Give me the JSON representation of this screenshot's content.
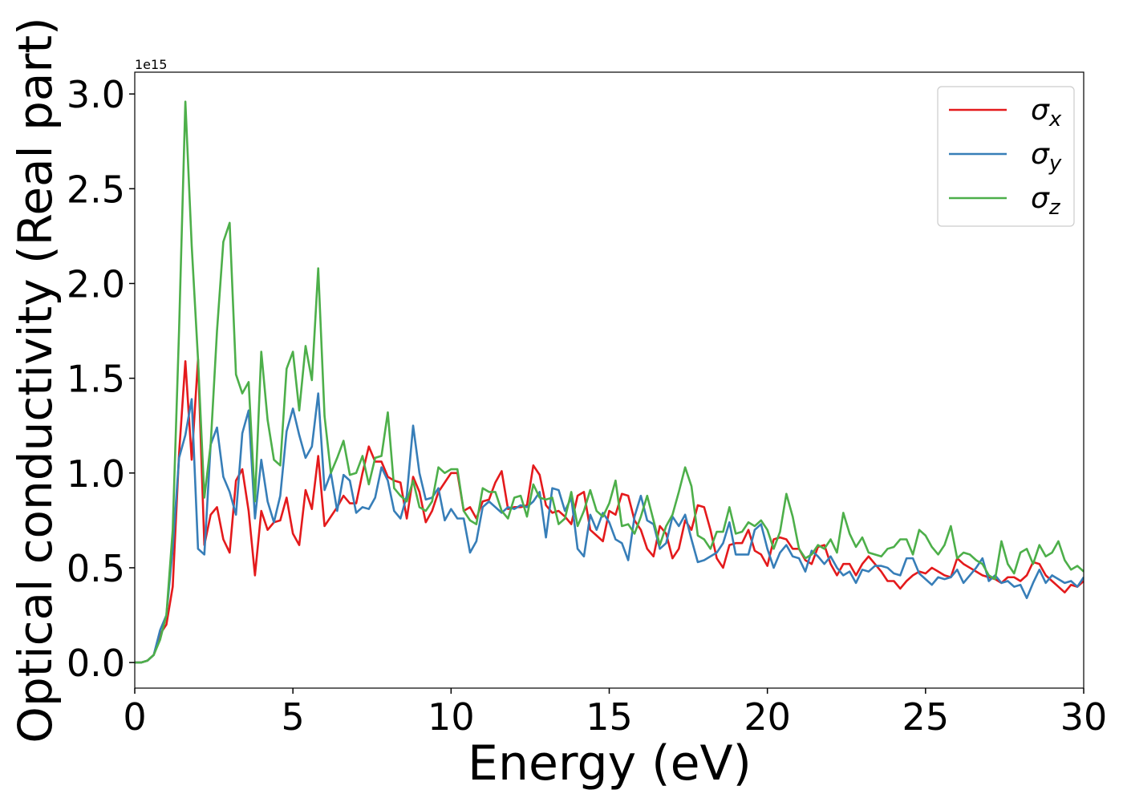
{
  "chart_data": {
    "type": "line",
    "xlabel": "Energy (eV)",
    "ylabel": "Optical conductivity (Real part)",
    "y_offset_label": "1e15",
    "x": [
      0,
      0.2,
      0.4,
      0.6,
      0.8,
      1,
      1.2,
      1.4,
      1.6,
      1.8,
      2,
      2.2,
      2.4,
      2.6,
      2.8,
      3,
      3.2,
      3.4,
      3.6,
      3.8,
      4,
      4.2,
      4.4,
      4.6,
      4.8,
      5,
      5.2,
      5.4,
      5.6,
      5.8,
      6,
      6.2,
      6.4,
      6.6,
      6.8,
      7,
      7.2,
      7.4,
      7.6,
      7.8,
      8,
      8.2,
      8.4,
      8.6,
      8.8,
      9,
      9.2,
      9.4,
      9.6,
      9.8,
      10,
      10.2,
      10.4,
      10.6,
      10.8,
      11,
      11.2,
      11.4,
      11.6,
      11.8,
      12,
      12.2,
      12.4,
      12.6,
      12.8,
      13,
      13.2,
      13.4,
      13.6,
      13.8,
      14,
      14.2,
      14.4,
      14.6,
      14.8,
      15,
      15.2,
      15.4,
      15.6,
      15.8,
      16,
      16.2,
      16.4,
      16.6,
      16.8,
      17,
      17.2,
      17.4,
      17.6,
      17.8,
      18,
      18.2,
      18.4,
      18.6,
      18.8,
      19,
      19.2,
      19.4,
      19.6,
      19.8,
      20,
      20.2,
      20.4,
      20.6,
      20.8,
      21,
      21.2,
      21.4,
      21.6,
      21.8,
      22,
      22.2,
      22.4,
      22.6,
      22.8,
      23,
      23.2,
      23.4,
      23.6,
      23.8,
      24,
      24.2,
      24.4,
      24.6,
      24.8,
      25,
      25.2,
      25.4,
      25.6,
      25.8,
      26,
      26.2,
      26.4,
      26.6,
      26.8,
      27,
      27.2,
      27.4,
      27.6,
      27.8,
      28,
      28.2,
      28.4,
      28.6,
      28.8,
      29,
      29.2,
      29.4,
      29.6,
      29.8,
      30
    ],
    "series": [
      {
        "name": "σx",
        "color": "#e41a1c",
        "values": [
          0,
          0,
          0.01,
          0.04,
          0.15,
          0.2,
          0.4,
          1.1,
          1.59,
          1.07,
          1.6,
          0.62,
          0.78,
          0.82,
          0.65,
          0.58,
          0.96,
          1.02,
          0.8,
          0.46,
          0.8,
          0.7,
          0.74,
          0.75,
          0.87,
          0.68,
          0.62,
          0.91,
          0.81,
          1.09,
          0.72,
          0.77,
          0.82,
          0.88,
          0.84,
          0.84,
          1.0,
          1.14,
          1.06,
          1.06,
          0.98,
          0.96,
          0.95,
          0.76,
          0.98,
          0.9,
          0.74,
          0.8,
          0.9,
          0.95,
          1.0,
          1.0,
          0.8,
          0.82,
          0.76,
          0.85,
          0.86,
          0.95,
          1.01,
          0.81,
          0.82,
          0.82,
          0.83,
          1.04,
          0.99,
          0.83,
          0.79,
          0.8,
          0.77,
          0.73,
          0.88,
          0.9,
          0.7,
          0.67,
          0.64,
          0.8,
          0.78,
          0.89,
          0.88,
          0.75,
          0.7,
          0.6,
          0.56,
          0.72,
          0.68,
          0.55,
          0.6,
          0.75,
          0.7,
          0.83,
          0.82,
          0.7,
          0.55,
          0.5,
          0.62,
          0.63,
          0.63,
          0.7,
          0.59,
          0.57,
          0.51,
          0.65,
          0.66,
          0.65,
          0.6,
          0.6,
          0.54,
          0.52,
          0.61,
          0.62,
          0.52,
          0.46,
          0.52,
          0.52,
          0.46,
          0.52,
          0.56,
          0.52,
          0.48,
          0.43,
          0.43,
          0.39,
          0.43,
          0.46,
          0.48,
          0.47,
          0.5,
          0.48,
          0.46,
          0.45,
          0.55,
          0.52,
          0.5,
          0.48,
          0.46,
          0.45,
          0.44,
          0.42,
          0.45,
          0.45,
          0.43,
          0.46,
          0.53,
          0.52,
          0.46,
          0.43,
          0.4,
          0.37,
          0.41,
          0.4,
          0.43
        ]
      },
      {
        "name": "σy",
        "color": "#377eb8",
        "values": [
          0,
          0,
          0.01,
          0.04,
          0.17,
          0.25,
          0.6,
          1.08,
          1.2,
          1.39,
          0.6,
          0.57,
          1.15,
          1.24,
          0.98,
          0.9,
          0.78,
          1.21,
          1.33,
          0.76,
          1.07,
          0.85,
          0.74,
          0.88,
          1.22,
          1.34,
          1.2,
          1.08,
          1.14,
          1.42,
          0.91,
          1.0,
          0.8,
          0.99,
          0.96,
          0.79,
          0.82,
          0.81,
          0.87,
          1.03,
          0.96,
          0.8,
          0.76,
          0.88,
          1.25,
          1.0,
          0.86,
          0.87,
          0.92,
          0.75,
          0.81,
          0.76,
          0.76,
          0.58,
          0.64,
          0.82,
          0.85,
          0.82,
          0.79,
          0.82,
          0.81,
          0.83,
          0.82,
          0.85,
          0.9,
          0.66,
          0.92,
          0.91,
          0.8,
          0.87,
          0.6,
          0.56,
          0.78,
          0.7,
          0.79,
          0.74,
          0.65,
          0.63,
          0.54,
          0.77,
          0.88,
          0.75,
          0.73,
          0.6,
          0.63,
          0.77,
          0.72,
          0.78,
          0.65,
          0.53,
          0.54,
          0.56,
          0.58,
          0.63,
          0.74,
          0.57,
          0.57,
          0.57,
          0.7,
          0.73,
          0.6,
          0.5,
          0.58,
          0.62,
          0.56,
          0.55,
          0.48,
          0.59,
          0.56,
          0.52,
          0.56,
          0.5,
          0.46,
          0.48,
          0.42,
          0.49,
          0.48,
          0.51,
          0.51,
          0.5,
          0.47,
          0.46,
          0.55,
          0.55,
          0.47,
          0.44,
          0.41,
          0.45,
          0.44,
          0.45,
          0.49,
          0.42,
          0.46,
          0.5,
          0.55,
          0.43,
          0.46,
          0.42,
          0.43,
          0.4,
          0.41,
          0.34,
          0.42,
          0.49,
          0.42,
          0.46,
          0.44,
          0.42,
          0.43,
          0.4,
          0.45
        ]
      },
      {
        "name": "σz",
        "color": "#4daf4a",
        "values": [
          0,
          0,
          0.01,
          0.04,
          0.12,
          0.25,
          0.7,
          1.75,
          2.96,
          2.2,
          1.6,
          0.87,
          1.15,
          1.75,
          2.22,
          2.32,
          1.52,
          1.42,
          1.48,
          0.85,
          1.64,
          1.28,
          1.07,
          1.04,
          1.55,
          1.64,
          1.33,
          1.67,
          1.49,
          2.08,
          1.3,
          1.0,
          1.08,
          1.17,
          0.99,
          1.0,
          1.09,
          0.94,
          1.08,
          1.09,
          1.32,
          0.92,
          0.88,
          0.85,
          0.96,
          0.82,
          0.8,
          0.85,
          1.03,
          1.0,
          1.02,
          1.02,
          0.8,
          0.75,
          0.73,
          0.92,
          0.9,
          0.9,
          0.8,
          0.76,
          0.87,
          0.88,
          0.77,
          0.94,
          0.87,
          0.86,
          0.87,
          0.73,
          0.76,
          0.9,
          0.72,
          0.8,
          0.91,
          0.8,
          0.77,
          0.84,
          0.96,
          0.72,
          0.73,
          0.68,
          0.77,
          0.88,
          0.75,
          0.62,
          0.72,
          0.78,
          0.9,
          1.03,
          0.93,
          0.67,
          0.65,
          0.6,
          0.69,
          0.69,
          0.82,
          0.68,
          0.69,
          0.74,
          0.72,
          0.75,
          0.7,
          0.6,
          0.69,
          0.89,
          0.77,
          0.6,
          0.55,
          0.57,
          0.62,
          0.6,
          0.65,
          0.58,
          0.79,
          0.68,
          0.61,
          0.66,
          0.58,
          0.57,
          0.56,
          0.6,
          0.61,
          0.65,
          0.65,
          0.57,
          0.7,
          0.67,
          0.61,
          0.57,
          0.62,
          0.72,
          0.55,
          0.58,
          0.57,
          0.54,
          0.52,
          0.46,
          0.44,
          0.64,
          0.52,
          0.47,
          0.58,
          0.6,
          0.52,
          0.62,
          0.56,
          0.58,
          0.64,
          0.54,
          0.49,
          0.51,
          0.48
        ]
      }
    ],
    "xlim": [
      0,
      30
    ],
    "xticks": [
      0,
      5,
      10,
      15,
      20,
      25,
      30
    ],
    "ylim": [
      -0.135,
      3.115
    ],
    "yticks": [
      {
        "value": 0,
        "label": "0.0"
      },
      {
        "value": 0.5,
        "label": "0.5"
      },
      {
        "value": 1,
        "label": "1.0"
      },
      {
        "value": 1.5,
        "label": "1.5"
      },
      {
        "value": 2,
        "label": "2.0"
      },
      {
        "value": 2.5,
        "label": "2.5"
      },
      {
        "value": 3,
        "label": "3.0"
      }
    ],
    "grid": false,
    "legend": "upper right"
  }
}
